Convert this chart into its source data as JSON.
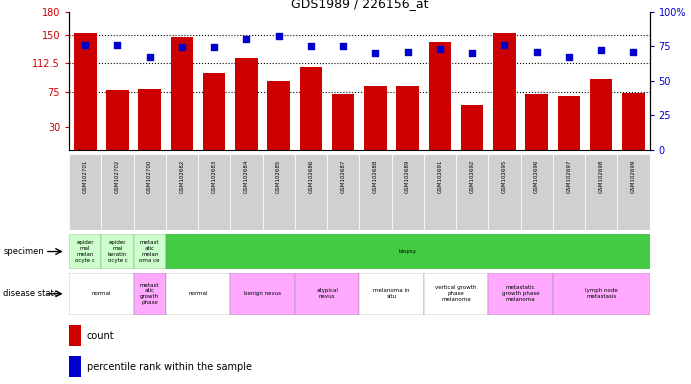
{
  "title": "GDS1989 / 226156_at",
  "samples": [
    "GSM102701",
    "GSM102702",
    "GSM102700",
    "GSM102682",
    "GSM102683",
    "GSM102684",
    "GSM102685",
    "GSM102686",
    "GSM102687",
    "GSM102688",
    "GSM102689",
    "GSM102691",
    "GSM102692",
    "GSM102695",
    "GSM102696",
    "GSM102697",
    "GSM102698",
    "GSM102699"
  ],
  "counts": [
    152,
    78,
    79,
    147,
    100,
    120,
    90,
    108,
    72,
    83,
    83,
    140,
    58,
    152,
    73,
    70,
    92,
    74
  ],
  "percentile_ranks": [
    76,
    76,
    67,
    74,
    74,
    80,
    82,
    75,
    75,
    70,
    71,
    73,
    70,
    76,
    71,
    67,
    72,
    71
  ],
  "ylim_left": [
    0,
    180
  ],
  "ylim_right": [
    0,
    100
  ],
  "yticks_left": [
    30,
    75,
    112.5,
    150,
    180
  ],
  "yticks_right": [
    0,
    25,
    50,
    75,
    100
  ],
  "ytick_labels_left": [
    "30",
    "75",
    "112.5",
    "150",
    "180"
  ],
  "ytick_labels_right": [
    "0",
    "25",
    "50",
    "75",
    "100%"
  ],
  "bar_color": "#cc0000",
  "dot_color": "#0000cc",
  "specimen_groups": [
    {
      "label": "epider\nmal\nmelan\nocyte c",
      "start": 0,
      "end": 1,
      "color": "#ccffcc"
    },
    {
      "label": "epider\nmal\nkeratin\nocyte c",
      "start": 1,
      "end": 2,
      "color": "#ccffcc"
    },
    {
      "label": "metast\natic\nmelan\noma ce",
      "start": 2,
      "end": 3,
      "color": "#ccffcc"
    },
    {
      "label": "biopsy",
      "start": 3,
      "end": 18,
      "color": "#44cc44"
    }
  ],
  "disease_groups": [
    {
      "label": "normal",
      "start": 0,
      "end": 2,
      "color": "#ffffff"
    },
    {
      "label": "metast\natic\ngrowth\nphase",
      "start": 2,
      "end": 3,
      "color": "#ffaaff"
    },
    {
      "label": "normal",
      "start": 3,
      "end": 5,
      "color": "#ffffff"
    },
    {
      "label": "benign nevus",
      "start": 5,
      "end": 7,
      "color": "#ffaaff"
    },
    {
      "label": "atypical\nnevus",
      "start": 7,
      "end": 9,
      "color": "#ffaaff"
    },
    {
      "label": "melanoma in\nsitu",
      "start": 9,
      "end": 11,
      "color": "#ffffff"
    },
    {
      "label": "vertical growth\nphase\nmelanoma",
      "start": 11,
      "end": 13,
      "color": "#ffffff"
    },
    {
      "label": "metastatic\ngrowth phase\nmelanoma",
      "start": 13,
      "end": 15,
      "color": "#ffaaff"
    },
    {
      "label": "lymph node\nmetastasis",
      "start": 15,
      "end": 18,
      "color": "#ffaaff"
    }
  ],
  "left_ylabel_color": "#cc0000",
  "right_ylabel_color": "#0000cc",
  "legend_items": [
    {
      "color": "#cc0000",
      "label": "count"
    },
    {
      "color": "#0000cc",
      "label": "percentile rank within the sample"
    }
  ],
  "fig_width": 6.91,
  "fig_height": 3.84
}
